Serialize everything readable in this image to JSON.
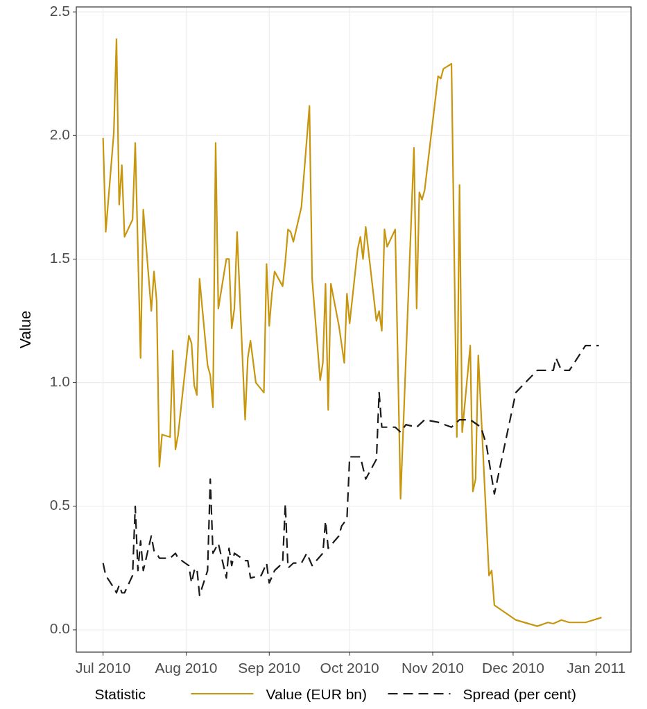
{
  "chart_data": {
    "type": "line",
    "ylabel": "Value",
    "legend_title": "Statistic",
    "legend": "bottom",
    "grid": true,
    "xlim": [
      "2010-06-21",
      "2011-01-14"
    ],
    "ylim": [
      -0.09,
      2.52
    ],
    "xticks": [
      {
        "value": "2010-07-01",
        "label": "Jul 2010"
      },
      {
        "value": "2010-08-01",
        "label": "Aug 2010"
      },
      {
        "value": "2010-09-01",
        "label": "Sep 2010"
      },
      {
        "value": "2010-10-01",
        "label": "Oct 2010"
      },
      {
        "value": "2010-11-01",
        "label": "Nov 2010"
      },
      {
        "value": "2010-12-01",
        "label": "Dec 2010"
      },
      {
        "value": "2011-01-01",
        "label": "Jan 2011"
      }
    ],
    "yticks": [
      {
        "value": 0,
        "label": "0.0"
      },
      {
        "value": 0.5,
        "label": "0.5"
      },
      {
        "value": 1,
        "label": "1.0"
      },
      {
        "value": 1.5,
        "label": "1.5"
      },
      {
        "value": 2,
        "label": "2.0"
      },
      {
        "value": 2.5,
        "label": "2.5"
      }
    ],
    "series": [
      {
        "name": "Value (EUR bn)",
        "color": "#c8960c",
        "line_style": "solid",
        "x": [
          "2010-07-01",
          "2010-07-02",
          "2010-07-05",
          "2010-07-06",
          "2010-07-07",
          "2010-07-08",
          "2010-07-09",
          "2010-07-12",
          "2010-07-13",
          "2010-07-15",
          "2010-07-16",
          "2010-07-19",
          "2010-07-20",
          "2010-07-21",
          "2010-07-22",
          "2010-07-23",
          "2010-07-26",
          "2010-07-27",
          "2010-07-28",
          "2010-07-29",
          "2010-08-02",
          "2010-08-03",
          "2010-08-04",
          "2010-08-05",
          "2010-08-06",
          "2010-08-09",
          "2010-08-10",
          "2010-08-11",
          "2010-08-12",
          "2010-08-13",
          "2010-08-16",
          "2010-08-17",
          "2010-08-18",
          "2010-08-19",
          "2010-08-20",
          "2010-08-23",
          "2010-08-24",
          "2010-08-25",
          "2010-08-27",
          "2010-08-30",
          "2010-08-31",
          "2010-09-01",
          "2010-09-02",
          "2010-09-03",
          "2010-09-06",
          "2010-09-07",
          "2010-09-08",
          "2010-09-09",
          "2010-09-10",
          "2010-09-13",
          "2010-09-16",
          "2010-09-17",
          "2010-09-20",
          "2010-09-21",
          "2010-09-22",
          "2010-09-23",
          "2010-09-24",
          "2010-09-27",
          "2010-09-29",
          "2010-09-30",
          "2010-10-01",
          "2010-10-04",
          "2010-10-05",
          "2010-10-06",
          "2010-10-07",
          "2010-10-11",
          "2010-10-12",
          "2010-10-13",
          "2010-10-14",
          "2010-10-15",
          "2010-10-18",
          "2010-10-20",
          "2010-10-25",
          "2010-10-26",
          "2010-10-27",
          "2010-10-28",
          "2010-10-29",
          "2010-11-03",
          "2010-11-04",
          "2010-11-05",
          "2010-11-08",
          "2010-11-10",
          "2010-11-11",
          "2010-11-12",
          "2010-11-15",
          "2010-11-16",
          "2010-11-17",
          "2010-11-18",
          "2010-11-22",
          "2010-11-23",
          "2010-11-24",
          "2010-12-02",
          "2010-12-10",
          "2010-12-14",
          "2010-12-16",
          "2010-12-19",
          "2010-12-22",
          "2010-12-28",
          "2011-01-03"
        ],
        "values": [
          1.99,
          1.61,
          2.01,
          2.39,
          1.72,
          1.88,
          1.59,
          1.66,
          1.97,
          1.1,
          1.7,
          1.29,
          1.45,
          1.33,
          0.66,
          0.79,
          0.78,
          1.13,
          0.73,
          0.79,
          1.19,
          1.16,
          0.99,
          0.95,
          1.42,
          1.07,
          1.03,
          0.9,
          1.97,
          1.3,
          1.5,
          1.5,
          1.22,
          1.3,
          1.61,
          0.85,
          1.1,
          1.17,
          1.0,
          0.96,
          1.48,
          1.23,
          1.36,
          1.45,
          1.39,
          1.49,
          1.62,
          1.61,
          1.57,
          1.71,
          2.12,
          1.42,
          1.01,
          1.08,
          1.4,
          0.89,
          1.4,
          1.23,
          1.08,
          1.36,
          1.24,
          1.54,
          1.59,
          1.5,
          1.63,
          1.25,
          1.29,
          1.21,
          1.62,
          1.55,
          1.62,
          0.53,
          1.95,
          1.3,
          1.77,
          1.74,
          1.78,
          2.24,
          2.23,
          2.27,
          2.29,
          0.78,
          1.8,
          0.8,
          1.15,
          0.56,
          0.61,
          1.11,
          0.22,
          0.24,
          0.1,
          0.04,
          0.015,
          0.03,
          0.025,
          0.04,
          0.03,
          0.03,
          0.05
        ]
      },
      {
        "name": "Spread (per cent)",
        "color": "#1a1a1a",
        "line_style": "dashed",
        "x": [
          "2010-07-01",
          "2010-07-02",
          "2010-07-05",
          "2010-07-06",
          "2010-07-07",
          "2010-07-08",
          "2010-07-09",
          "2010-07-12",
          "2010-07-13",
          "2010-07-14",
          "2010-07-15",
          "2010-07-16",
          "2010-07-19",
          "2010-07-20",
          "2010-07-21",
          "2010-07-22",
          "2010-07-26",
          "2010-07-28",
          "2010-07-29",
          "2010-08-02",
          "2010-08-03",
          "2010-08-04",
          "2010-08-05",
          "2010-08-06",
          "2010-08-09",
          "2010-08-10",
          "2010-08-11",
          "2010-08-12",
          "2010-08-13",
          "2010-08-16",
          "2010-08-17",
          "2010-08-18",
          "2010-08-19",
          "2010-08-23",
          "2010-08-24",
          "2010-08-25",
          "2010-08-29",
          "2010-08-31",
          "2010-09-01",
          "2010-09-03",
          "2010-09-06",
          "2010-09-07",
          "2010-09-08",
          "2010-09-10",
          "2010-09-13",
          "2010-09-15",
          "2010-09-17",
          "2010-09-21",
          "2010-09-22",
          "2010-09-23",
          "2010-09-27",
          "2010-09-28",
          "2010-09-30",
          "2010-10-01",
          "2010-10-04",
          "2010-10-05",
          "2010-10-07",
          "2010-10-11",
          "2010-10-12",
          "2010-10-13",
          "2010-10-15",
          "2010-10-18",
          "2010-10-20",
          "2010-10-22",
          "2010-10-26",
          "2010-10-29",
          "2010-11-03",
          "2010-11-08",
          "2010-11-11",
          "2010-11-15",
          "2010-11-19",
          "2010-11-21",
          "2010-11-24",
          "2010-12-02",
          "2010-12-10",
          "2010-12-16",
          "2010-12-17",
          "2010-12-19",
          "2010-12-22",
          "2010-12-28",
          "2011-01-02"
        ],
        "values": [
          0.27,
          0.22,
          0.17,
          0.15,
          0.18,
          0.15,
          0.15,
          0.22,
          0.5,
          0.24,
          0.36,
          0.24,
          0.38,
          0.32,
          0.31,
          0.29,
          0.29,
          0.31,
          0.29,
          0.26,
          0.19,
          0.24,
          0.25,
          0.14,
          0.24,
          0.61,
          0.31,
          0.33,
          0.35,
          0.21,
          0.33,
          0.26,
          0.31,
          0.28,
          0.28,
          0.21,
          0.22,
          0.27,
          0.19,
          0.24,
          0.27,
          0.51,
          0.25,
          0.27,
          0.27,
          0.31,
          0.26,
          0.31,
          0.44,
          0.33,
          0.38,
          0.42,
          0.45,
          0.7,
          0.7,
          0.7,
          0.61,
          0.69,
          0.96,
          0.82,
          0.82,
          0.82,
          0.8,
          0.83,
          0.82,
          0.85,
          0.84,
          0.82,
          0.85,
          0.85,
          0.82,
          0.75,
          0.55,
          0.96,
          1.05,
          1.05,
          1.1,
          1.05,
          1.05,
          1.15,
          1.15
        ]
      }
    ]
  }
}
